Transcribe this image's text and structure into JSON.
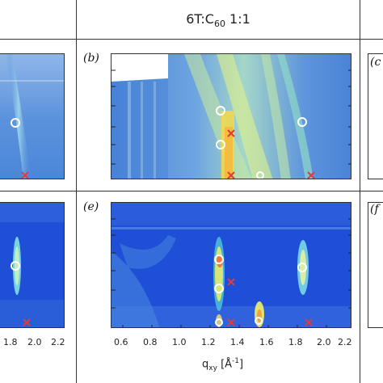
{
  "column_title": "6T:C",
  "column_title_sub": "60",
  "column_title_suffix": " 1:1",
  "panels": {
    "b": "(b)",
    "c": "(c",
    "e": "(e)",
    "f": "(f"
  },
  "x_axis": {
    "label_main": "q",
    "label_sub": "xy",
    "label_unit": "[Å",
    "label_exp": "-1",
    "label_close": "]",
    "ticks_middle": [
      "0.6",
      "0.8",
      "1.0",
      "1.2",
      "1.4",
      "1.6",
      "1.8",
      "2.0",
      "2.2"
    ],
    "ticks_left": [
      "1.8",
      "2.0",
      "2.2"
    ]
  },
  "colors": {
    "background_blue": "#1f4fd6",
    "deep_blue": "#123bb8",
    "hot": "#f4e96a",
    "cyan": "#7fe0e6",
    "marker_x": "#e23a3a"
  },
  "chart_data": {
    "type": "scatter",
    "xlabel": "q_xy [Å^-1]",
    "xlim": [
      0.5,
      2.2
    ],
    "series": [
      {
        "marker": "circle",
        "panel": "b",
        "x": [
          1.3,
          1.3,
          1.6,
          1.3,
          1.9
        ],
        "y_level": [
          "high",
          "mid",
          "bottom",
          "bottom",
          "high"
        ]
      },
      {
        "marker": "cross",
        "panel": "b",
        "x": [
          1.37,
          1.37,
          1.97
        ],
        "y_level": [
          "mid",
          "bottom",
          "bottom"
        ]
      },
      {
        "marker": "circle",
        "panel": "e",
        "x": [
          1.3,
          1.3,
          1.58,
          1.9,
          1.3
        ],
        "y_level": [
          "high",
          "mid",
          "bottom",
          "high",
          "bottom"
        ]
      },
      {
        "marker": "cross",
        "panel": "e",
        "x": [
          1.37,
          1.37,
          1.95
        ],
        "y_level": [
          "mid",
          "bottom",
          "bottom"
        ]
      }
    ]
  }
}
